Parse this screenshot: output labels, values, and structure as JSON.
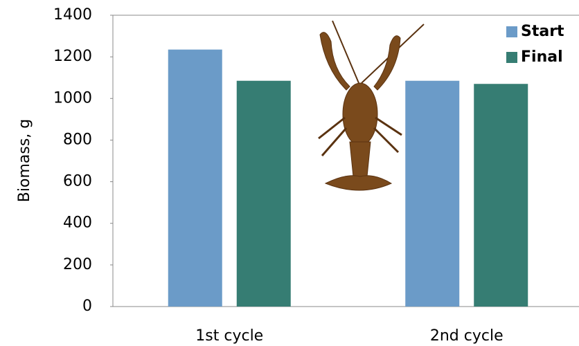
{
  "chart_data": {
    "type": "bar",
    "y_label": "Biomass, g",
    "categories": [
      "1st cycle",
      "2nd cycle"
    ],
    "series": [
      {
        "name": "Start",
        "color": "#6b9bc8",
        "values": [
          1235,
          1085
        ]
      },
      {
        "name": "Final",
        "color": "#367d73",
        "values": [
          1085,
          1070
        ]
      }
    ],
    "ylim": [
      0,
      1400
    ],
    "yticks": [
      0,
      200,
      400,
      600,
      800,
      1000,
      1200,
      1400
    ],
    "grid": false,
    "legend": "upper right"
  }
}
